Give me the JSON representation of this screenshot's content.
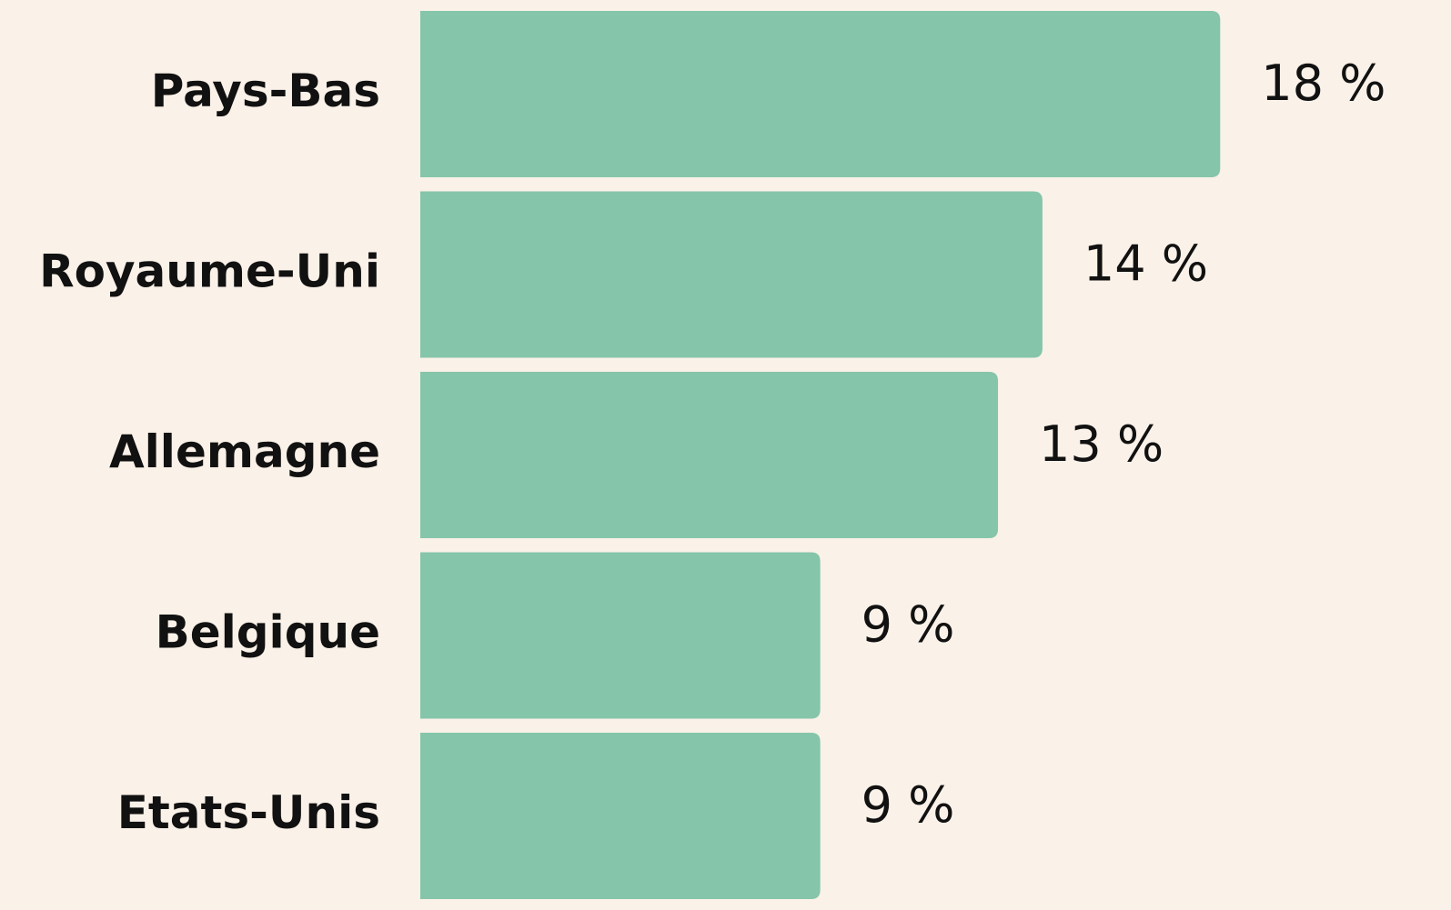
{
  "chart_data": {
    "type": "bar",
    "orientation": "horizontal",
    "categories": [
      "Pays-Bas",
      "Royaume-Uni",
      "Allemagne",
      "Belgique",
      "Etats-Unis"
    ],
    "values": [
      18,
      14,
      13,
      9,
      9
    ],
    "value_labels": [
      "18 %",
      "14 %",
      "13 %",
      "9 %",
      "9 %"
    ],
    "color": "#85c5aa"
  }
}
